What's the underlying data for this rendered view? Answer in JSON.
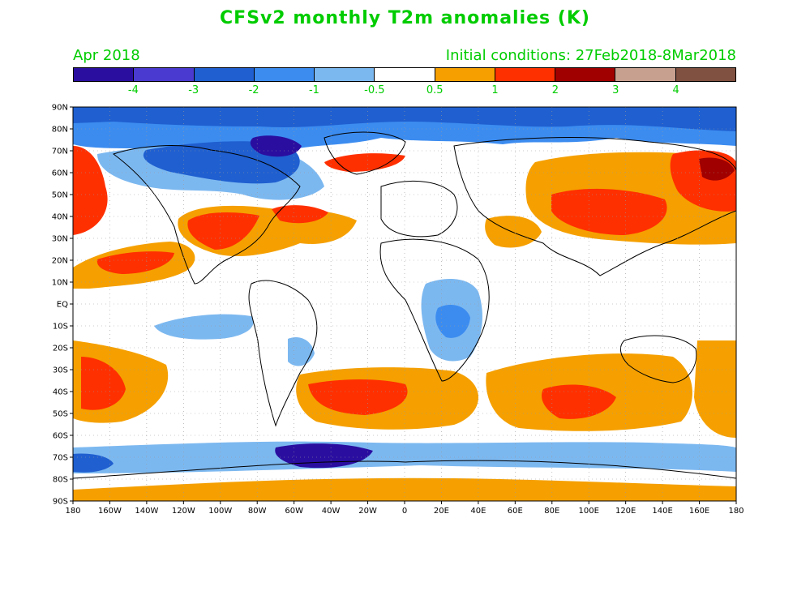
{
  "title": "CFSv2 monthly T2m anomalies (K)",
  "subtitle_left": "Apr 2018",
  "subtitle_right": "Initial conditions: 27Feb2018-8Mar2018",
  "colorbar": {
    "colors": [
      "#2a0ea0",
      "#4a3ad0",
      "#1f5fd0",
      "#3c8cf0",
      "#7cb8f0",
      "#ffffff",
      "#f5a000",
      "#ff3000",
      "#a00000",
      "#c8a090",
      "#805040"
    ],
    "labels": [
      "-4",
      "-3",
      "-2",
      "-1",
      "-0.5",
      "0.5",
      "1",
      "2",
      "3",
      "4"
    ]
  },
  "lat_ticks": [
    "90N",
    "80N",
    "70N",
    "60N",
    "50N",
    "40N",
    "30N",
    "20N",
    "10N",
    "EQ",
    "10S",
    "20S",
    "30S",
    "40S",
    "50S",
    "60S",
    "70S",
    "80S",
    "90S"
  ],
  "lon_ticks": [
    "180",
    "160W",
    "140W",
    "120W",
    "100W",
    "80W",
    "60W",
    "40W",
    "20W",
    "0",
    "20E",
    "40E",
    "60E",
    "80E",
    "100E",
    "120E",
    "140E",
    "160E",
    "180"
  ]
}
